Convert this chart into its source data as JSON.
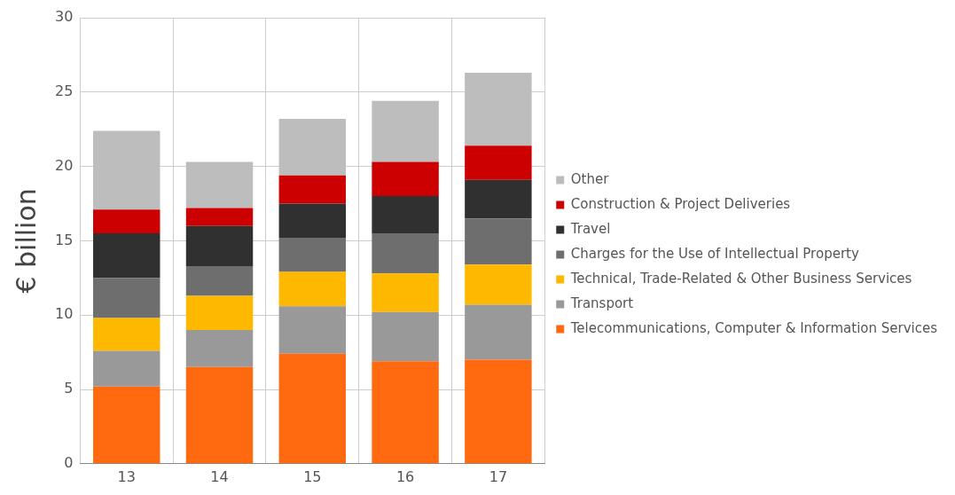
{
  "chart_data": {
    "type": "bar",
    "stacked": true,
    "ylabel": "€ billion",
    "categories": [
      "13",
      "14",
      "15",
      "16",
      "17"
    ],
    "ylim": [
      0,
      30
    ],
    "yticks": [
      0,
      5,
      10,
      15,
      20,
      25,
      30
    ],
    "grid": true,
    "legend": "right",
    "series": [
      {
        "name": "Telecommunications, Computer & Information Services",
        "color": "#ff6a10",
        "values": [
          5.2,
          6.5,
          7.4,
          6.9,
          7.0
        ]
      },
      {
        "name": "Transport",
        "color": "#999999",
        "values": [
          2.4,
          2.5,
          3.2,
          3.3,
          3.7
        ]
      },
      {
        "name": "Technical, Trade-Related & Other Business Services",
        "color": "#ffb800",
        "values": [
          2.2,
          2.3,
          2.3,
          2.6,
          2.7
        ]
      },
      {
        "name": "Charges for the Use of Intellectual Property",
        "color": "#6e6e6e",
        "values": [
          2.7,
          2.0,
          2.3,
          2.7,
          3.1
        ]
      },
      {
        "name": "Travel",
        "color": "#303030",
        "values": [
          3.0,
          2.7,
          2.3,
          2.5,
          2.6
        ]
      },
      {
        "name": "Construction & Project Deliveries",
        "color": "#cc0000",
        "values": [
          1.6,
          1.2,
          1.9,
          2.3,
          2.3
        ]
      },
      {
        "name": "Other",
        "color": "#bdbdbd",
        "values": [
          5.3,
          3.1,
          3.8,
          4.1,
          4.9
        ]
      }
    ]
  }
}
